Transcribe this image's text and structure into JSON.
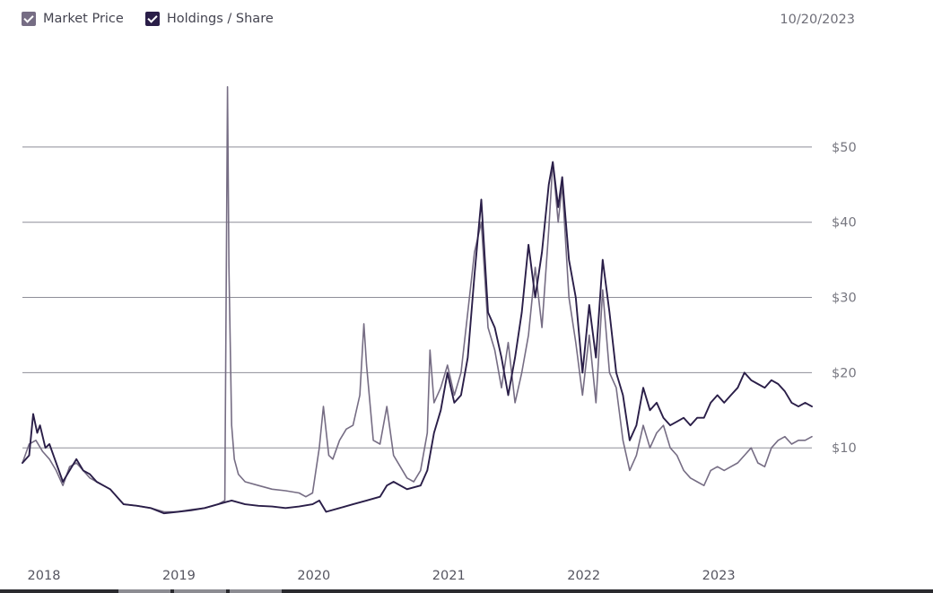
{
  "legend": {
    "items": [
      {
        "label": "Market Price",
        "color": "#766d84",
        "checked": true
      },
      {
        "label": "Holdings / Share",
        "color": "#2a1e48",
        "checked": true
      }
    ]
  },
  "date_label": "10/20/2023",
  "chart_data": {
    "type": "line",
    "title": "",
    "xlabel": "",
    "ylabel": "",
    "x_ticks": [
      "2018",
      "2019",
      "2020",
      "2021",
      "2022",
      "2023"
    ],
    "y_ticks": [
      "$10",
      "$20",
      "$30",
      "$40",
      "$50"
    ],
    "y_tick_values": [
      10,
      20,
      30,
      40,
      50
    ],
    "xlim": [
      2017.95,
      2023.8
    ],
    "ylim": [
      -5,
      60
    ],
    "grid": "horizontal",
    "legend_position": "top-left",
    "series": [
      {
        "name": "Market Price",
        "color": "#766d84",
        "points": [
          [
            2017.95,
            8.0
          ],
          [
            2018.0,
            10.5
          ],
          [
            2018.05,
            11.0
          ],
          [
            2018.1,
            9.5
          ],
          [
            2018.15,
            8.5
          ],
          [
            2018.2,
            7.0
          ],
          [
            2018.25,
            5.0
          ],
          [
            2018.3,
            7.5
          ],
          [
            2018.35,
            8.0
          ],
          [
            2018.4,
            7.0
          ],
          [
            2018.45,
            6.0
          ],
          [
            2018.5,
            5.5
          ],
          [
            2018.55,
            5.0
          ],
          [
            2018.6,
            4.5
          ],
          [
            2018.65,
            3.5
          ],
          [
            2018.7,
            2.5
          ],
          [
            2018.8,
            2.3
          ],
          [
            2018.9,
            2.0
          ],
          [
            2019.0,
            1.5
          ],
          [
            2019.1,
            1.5
          ],
          [
            2019.2,
            1.8
          ],
          [
            2019.3,
            2.0
          ],
          [
            2019.4,
            2.5
          ],
          [
            2019.45,
            3.0
          ],
          [
            2019.47,
            58.0
          ],
          [
            2019.48,
            34.0
          ],
          [
            2019.5,
            13.0
          ],
          [
            2019.52,
            8.5
          ],
          [
            2019.55,
            6.5
          ],
          [
            2019.6,
            5.5
          ],
          [
            2019.7,
            5.0
          ],
          [
            2019.8,
            4.5
          ],
          [
            2019.9,
            4.3
          ],
          [
            2020.0,
            4.0
          ],
          [
            2020.05,
            3.5
          ],
          [
            2020.1,
            4.0
          ],
          [
            2020.15,
            10.0
          ],
          [
            2020.18,
            15.5
          ],
          [
            2020.22,
            9.0
          ],
          [
            2020.25,
            8.5
          ],
          [
            2020.3,
            11.0
          ],
          [
            2020.35,
            12.5
          ],
          [
            2020.4,
            13.0
          ],
          [
            2020.45,
            17.0
          ],
          [
            2020.48,
            26.5
          ],
          [
            2020.5,
            21.0
          ],
          [
            2020.55,
            11.0
          ],
          [
            2020.6,
            10.5
          ],
          [
            2020.65,
            15.5
          ],
          [
            2020.7,
            9.0
          ],
          [
            2020.75,
            7.5
          ],
          [
            2020.8,
            6.0
          ],
          [
            2020.85,
            5.5
          ],
          [
            2020.9,
            7.0
          ],
          [
            2020.95,
            12.0
          ],
          [
            2020.97,
            23.0
          ],
          [
            2021.0,
            16.0
          ],
          [
            2021.05,
            18.0
          ],
          [
            2021.1,
            21.0
          ],
          [
            2021.15,
            17.0
          ],
          [
            2021.2,
            20.0
          ],
          [
            2021.25,
            28.0
          ],
          [
            2021.3,
            36.0
          ],
          [
            2021.35,
            40.0
          ],
          [
            2021.4,
            26.0
          ],
          [
            2021.45,
            23.0
          ],
          [
            2021.5,
            18.0
          ],
          [
            2021.55,
            24.0
          ],
          [
            2021.6,
            16.0
          ],
          [
            2021.65,
            20.0
          ],
          [
            2021.7,
            25.0
          ],
          [
            2021.75,
            34.0
          ],
          [
            2021.8,
            26.0
          ],
          [
            2021.85,
            39.0
          ],
          [
            2021.88,
            48.0
          ],
          [
            2021.92,
            40.0
          ],
          [
            2021.95,
            45.0
          ],
          [
            2022.0,
            30.0
          ],
          [
            2022.05,
            24.0
          ],
          [
            2022.1,
            17.0
          ],
          [
            2022.15,
            25.0
          ],
          [
            2022.2,
            16.0
          ],
          [
            2022.25,
            31.0
          ],
          [
            2022.3,
            20.0
          ],
          [
            2022.35,
            18.0
          ],
          [
            2022.4,
            11.0
          ],
          [
            2022.45,
            7.0
          ],
          [
            2022.5,
            9.0
          ],
          [
            2022.55,
            13.0
          ],
          [
            2022.6,
            10.0
          ],
          [
            2022.65,
            12.0
          ],
          [
            2022.7,
            13.0
          ],
          [
            2022.75,
            10.0
          ],
          [
            2022.8,
            9.0
          ],
          [
            2022.85,
            7.0
          ],
          [
            2022.9,
            6.0
          ],
          [
            2022.95,
            5.5
          ],
          [
            2023.0,
            5.0
          ],
          [
            2023.05,
            7.0
          ],
          [
            2023.1,
            7.5
          ],
          [
            2023.15,
            7.0
          ],
          [
            2023.2,
            7.5
          ],
          [
            2023.25,
            8.0
          ],
          [
            2023.3,
            9.0
          ],
          [
            2023.35,
            10.0
          ],
          [
            2023.4,
            8.0
          ],
          [
            2023.45,
            7.5
          ],
          [
            2023.5,
            10.0
          ],
          [
            2023.55,
            11.0
          ],
          [
            2023.6,
            11.5
          ],
          [
            2023.65,
            10.5
          ],
          [
            2023.7,
            11.0
          ],
          [
            2023.75,
            11.0
          ],
          [
            2023.8,
            11.5
          ]
        ]
      },
      {
        "name": "Holdings / Share",
        "color": "#2a1e48",
        "points": [
          [
            2017.95,
            8.0
          ],
          [
            2018.0,
            9.0
          ],
          [
            2018.03,
            14.5
          ],
          [
            2018.06,
            12.0
          ],
          [
            2018.08,
            13.0
          ],
          [
            2018.12,
            10.0
          ],
          [
            2018.15,
            10.5
          ],
          [
            2018.2,
            8.0
          ],
          [
            2018.25,
            5.5
          ],
          [
            2018.3,
            7.0
          ],
          [
            2018.35,
            8.5
          ],
          [
            2018.4,
            7.0
          ],
          [
            2018.45,
            6.5
          ],
          [
            2018.5,
            5.5
          ],
          [
            2018.55,
            5.0
          ],
          [
            2018.6,
            4.5
          ],
          [
            2018.65,
            3.5
          ],
          [
            2018.7,
            2.5
          ],
          [
            2018.8,
            2.3
          ],
          [
            2018.9,
            2.0
          ],
          [
            2019.0,
            1.3
          ],
          [
            2019.1,
            1.5
          ],
          [
            2019.2,
            1.7
          ],
          [
            2019.3,
            2.0
          ],
          [
            2019.4,
            2.5
          ],
          [
            2019.5,
            3.0
          ],
          [
            2019.6,
            2.5
          ],
          [
            2019.7,
            2.3
          ],
          [
            2019.8,
            2.2
          ],
          [
            2019.9,
            2.0
          ],
          [
            2020.0,
            2.2
          ],
          [
            2020.1,
            2.5
          ],
          [
            2020.15,
            3.0
          ],
          [
            2020.2,
            1.5
          ],
          [
            2020.3,
            2.0
          ],
          [
            2020.4,
            2.5
          ],
          [
            2020.5,
            3.0
          ],
          [
            2020.6,
            3.5
          ],
          [
            2020.65,
            5.0
          ],
          [
            2020.7,
            5.5
          ],
          [
            2020.8,
            4.5
          ],
          [
            2020.9,
            5.0
          ],
          [
            2020.95,
            7.0
          ],
          [
            2021.0,
            12.0
          ],
          [
            2021.05,
            15.0
          ],
          [
            2021.1,
            20.0
          ],
          [
            2021.15,
            16.0
          ],
          [
            2021.2,
            17.0
          ],
          [
            2021.25,
            22.0
          ],
          [
            2021.3,
            33.0
          ],
          [
            2021.35,
            43.0
          ],
          [
            2021.4,
            28.0
          ],
          [
            2021.45,
            26.0
          ],
          [
            2021.5,
            22.0
          ],
          [
            2021.55,
            17.0
          ],
          [
            2021.6,
            22.0
          ],
          [
            2021.65,
            28.0
          ],
          [
            2021.7,
            37.0
          ],
          [
            2021.75,
            30.0
          ],
          [
            2021.8,
            36.0
          ],
          [
            2021.85,
            45.0
          ],
          [
            2021.88,
            48.0
          ],
          [
            2021.92,
            42.0
          ],
          [
            2021.95,
            46.0
          ],
          [
            2022.0,
            35.0
          ],
          [
            2022.05,
            30.0
          ],
          [
            2022.1,
            20.0
          ],
          [
            2022.15,
            29.0
          ],
          [
            2022.2,
            22.0
          ],
          [
            2022.25,
            35.0
          ],
          [
            2022.3,
            28.0
          ],
          [
            2022.35,
            20.0
          ],
          [
            2022.4,
            17.0
          ],
          [
            2022.45,
            11.0
          ],
          [
            2022.5,
            13.0
          ],
          [
            2022.55,
            18.0
          ],
          [
            2022.6,
            15.0
          ],
          [
            2022.65,
            16.0
          ],
          [
            2022.7,
            14.0
          ],
          [
            2022.75,
            13.0
          ],
          [
            2022.8,
            13.5
          ],
          [
            2022.85,
            14.0
          ],
          [
            2022.9,
            13.0
          ],
          [
            2022.95,
            14.0
          ],
          [
            2023.0,
            14.0
          ],
          [
            2023.05,
            16.0
          ],
          [
            2023.1,
            17.0
          ],
          [
            2023.15,
            16.0
          ],
          [
            2023.2,
            17.0
          ],
          [
            2023.25,
            18.0
          ],
          [
            2023.3,
            20.0
          ],
          [
            2023.35,
            19.0
          ],
          [
            2023.4,
            18.5
          ],
          [
            2023.45,
            18.0
          ],
          [
            2023.5,
            19.0
          ],
          [
            2023.55,
            18.5
          ],
          [
            2023.6,
            17.5
          ],
          [
            2023.65,
            16.0
          ],
          [
            2023.7,
            15.5
          ],
          [
            2023.75,
            16.0
          ],
          [
            2023.8,
            15.5
          ]
        ]
      }
    ]
  }
}
